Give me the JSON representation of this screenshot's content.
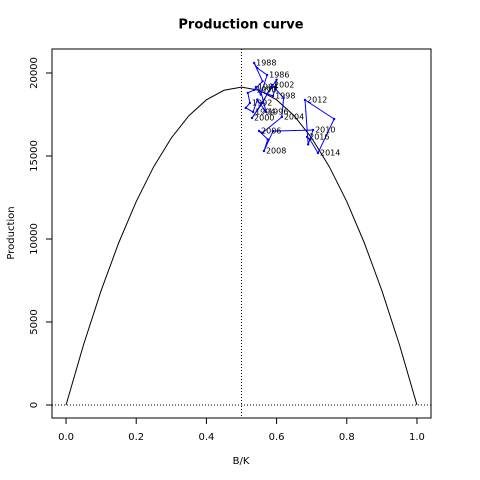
{
  "chart_data": {
    "type": "line",
    "title": "Production curve",
    "x_label": "B/K",
    "y_label": "Production",
    "xlim": [
      -0.04,
      1.04
    ],
    "ylim": [
      -783,
      21446
    ],
    "xticks": [
      {
        "value": 0,
        "label": "0.0"
      },
      0.2,
      0.4,
      0.6,
      0.8,
      {
        "value": 1,
        "label": "1.0"
      }
    ],
    "yticks": [
      0,
      5000,
      10000,
      15000,
      20000
    ],
    "ref_x": 0.5,
    "ref_y": 0,
    "curve": {
      "color": "#000000",
      "x": [
        0,
        0.05,
        0.1,
        0.15,
        0.2,
        0.25,
        0.3,
        0.35,
        0.4,
        0.45,
        0.5,
        0.55,
        0.6,
        0.65,
        0.7,
        0.75,
        0.8,
        0.85,
        0.9,
        0.95,
        1
      ],
      "values": [
        0,
        3639,
        6894,
        9767,
        12256,
        14363,
        16086,
        17427,
        18384,
        18959,
        19150,
        18959,
        18384,
        17427,
        16086,
        14363,
        12256,
        9767,
        6894,
        3639,
        0
      ]
    },
    "trajectory": {
      "color": "#0000ff",
      "x": [
        0.541,
        0.555,
        0.573,
        0.545,
        0.536,
        0.56,
        0.536,
        0.518,
        0.524,
        0.512,
        0.533,
        0.545,
        0.57,
        0.555,
        0.59,
        0.6,
        0.53,
        0.56,
        0.587,
        0.62,
        0.615,
        0.56,
        0.55,
        0.575,
        0.564,
        0.59,
        0.704,
        0.69,
        0.681,
        0.764,
        0.718,
        0.695,
        0.687
      ],
      "values": [
        19157,
        18700,
        19880,
        20300,
        20602,
        19500,
        18976,
        18800,
        18193,
        17900,
        17651,
        18400,
        17651,
        18900,
        18614,
        19600,
        17289,
        18200,
        19277,
        18500,
        17349,
        16400,
        16506,
        16000,
        15301,
        16500,
        16566,
        15700,
        18373,
        17229,
        15181,
        16000,
        16145
      ],
      "labels": [
        "1984",
        null,
        "1986",
        null,
        "1988",
        null,
        "1990",
        null,
        "1992",
        null,
        "1994",
        null,
        "1996",
        null,
        "1998",
        null,
        "2000",
        null,
        "2002",
        null,
        "2004",
        null,
        "2006",
        null,
        "2008",
        null,
        "2010",
        null,
        "2012",
        null,
        "2014",
        null,
        "2016"
      ]
    }
  }
}
